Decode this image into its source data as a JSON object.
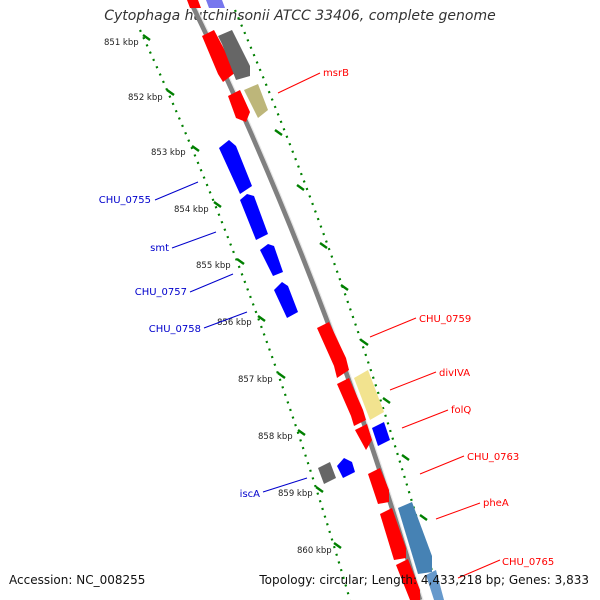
{
  "title": "Cytophaga hutchinsonii ATCC 33406, complete genome",
  "accession": "Accession: NC_008255",
  "topology": "Topology: circular; Length: 4,433,218 bp; Genes: 3,833",
  "colors": {
    "forward_gene": "#ff0000",
    "reverse_gene": "#0000ff",
    "backbone": "#808080",
    "tick": "#008000",
    "tan_feature": "#e6d98c",
    "gray_feature": "#666666",
    "steelblue_feature": "#4682b4"
  },
  "ticks": [
    {
      "label": "851 kbp"
    },
    {
      "label": "852 kbp"
    },
    {
      "label": "853 kbp"
    },
    {
      "label": "854 kbp"
    },
    {
      "label": "855 kbp"
    },
    {
      "label": "856 kbp"
    },
    {
      "label": "857 kbp"
    },
    {
      "label": "858 kbp"
    },
    {
      "label": "859 kbp"
    },
    {
      "label": "860 kbp"
    }
  ],
  "genes": [
    {
      "name": "msrB",
      "strand": "forward"
    },
    {
      "name": "CHU_0755",
      "strand": "reverse"
    },
    {
      "name": "smt",
      "strand": "reverse"
    },
    {
      "name": "CHU_0757",
      "strand": "reverse"
    },
    {
      "name": "CHU_0758",
      "strand": "reverse"
    },
    {
      "name": "CHU_0759",
      "strand": "forward"
    },
    {
      "name": "divIVA",
      "strand": "forward"
    },
    {
      "name": "folQ",
      "strand": "forward"
    },
    {
      "name": "CHU_0763",
      "strand": "forward"
    },
    {
      "name": "iscA",
      "strand": "reverse"
    },
    {
      "name": "pheA",
      "strand": "forward"
    },
    {
      "name": "CHU_0765",
      "strand": "forward"
    }
  ]
}
